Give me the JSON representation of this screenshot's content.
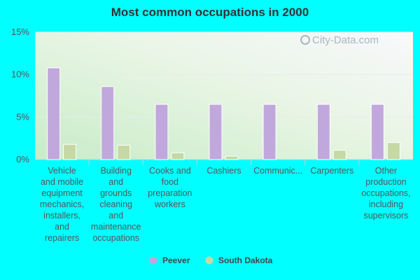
{
  "chart_data": {
    "type": "bar",
    "title": "Most common occupations in 2000",
    "xlabel": "",
    "ylabel": "",
    "ylim": [
      0,
      15
    ],
    "yticks": [
      "0%",
      "5%",
      "10%",
      "15%"
    ],
    "categories": [
      [
        "Vehicle",
        "and mobile",
        "equipment",
        "mechanics,",
        "installers,",
        "and",
        "repairers"
      ],
      [
        "Building",
        "and",
        "grounds",
        "cleaning",
        "and",
        "maintenance",
        "occupations"
      ],
      [
        "Cooks and",
        "food",
        "preparation",
        "workers"
      ],
      [
        "Cashiers"
      ],
      [
        "Communic..."
      ],
      [
        "Carpenters"
      ],
      [
        "Other",
        "production",
        "occupations,",
        "including",
        "supervisors"
      ]
    ],
    "series": [
      {
        "name": "Peever",
        "color": "#c0a8dc",
        "values": [
          10.8,
          8.6,
          6.5,
          6.5,
          6.5,
          6.5,
          6.5
        ]
      },
      {
        "name": "South Dakota",
        "color": "#c6d9a3",
        "values": [
          1.8,
          1.7,
          0.8,
          0.4,
          0.0,
          1.1,
          2.0
        ]
      }
    ],
    "grid": true,
    "legend": "bottom"
  },
  "watermark": "City-Data.com"
}
